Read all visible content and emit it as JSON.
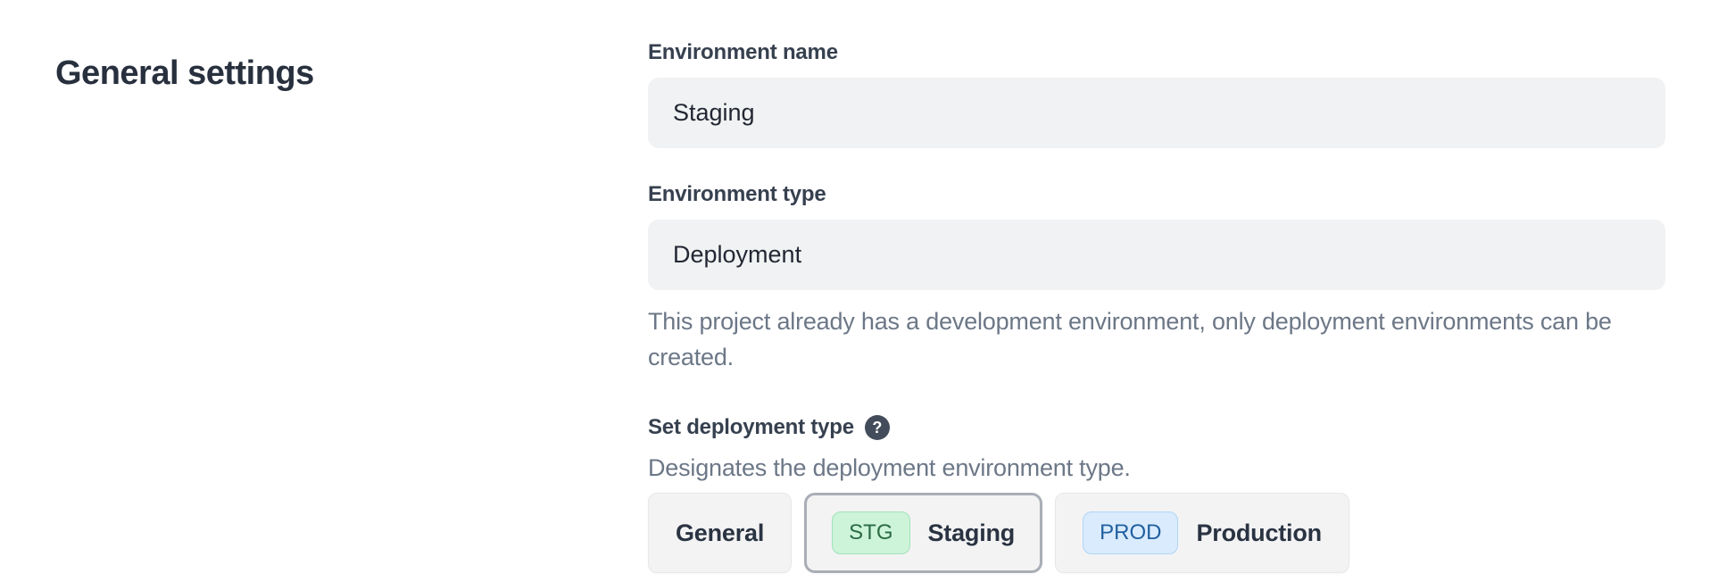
{
  "page_title": "General settings",
  "form": {
    "environment_name": {
      "label": "Environment name",
      "value": "Staging"
    },
    "environment_type": {
      "label": "Environment type",
      "value": "Deployment",
      "help": "This project already has a development environment, only deployment environments can be created."
    },
    "deployment_type": {
      "label": "Set deployment type",
      "help_icon": "?",
      "description": "Designates the deployment environment type.",
      "options": [
        {
          "label": "General",
          "badge": "",
          "selected": false
        },
        {
          "label": "Staging",
          "badge": "STG",
          "selected": true
        },
        {
          "label": "Production",
          "badge": "PROD",
          "selected": false
        }
      ]
    }
  },
  "colors": {
    "heading_text": "#28303e",
    "label_text": "#36404f",
    "muted_text": "#6c7787",
    "input_background": "#f1f2f3",
    "button_background": "#f3f3f4",
    "selected_border": "#a9aeb6",
    "staging_badge_bg": "#cdf3d9",
    "staging_badge_text": "#2a6b42",
    "production_badge_bg": "#d9ebfc",
    "production_badge_text": "#2160a0",
    "help_icon_bg": "#434c5b"
  }
}
